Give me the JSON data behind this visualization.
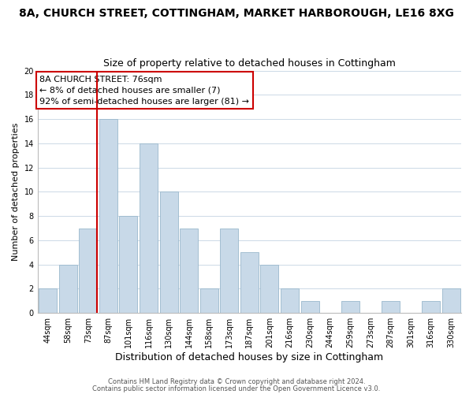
{
  "title": "8A, CHURCH STREET, COTTINGHAM, MARKET HARBOROUGH, LE16 8XG",
  "subtitle": "Size of property relative to detached houses in Cottingham",
  "xlabel": "Distribution of detached houses by size in Cottingham",
  "ylabel": "Number of detached properties",
  "bar_labels": [
    "44sqm",
    "58sqm",
    "73sqm",
    "87sqm",
    "101sqm",
    "116sqm",
    "130sqm",
    "144sqm",
    "158sqm",
    "173sqm",
    "187sqm",
    "201sqm",
    "216sqm",
    "230sqm",
    "244sqm",
    "259sqm",
    "273sqm",
    "287sqm",
    "301sqm",
    "316sqm",
    "330sqm"
  ],
  "bar_values": [
    2,
    4,
    7,
    16,
    8,
    14,
    10,
    7,
    2,
    7,
    5,
    4,
    2,
    1,
    0,
    1,
    0,
    1,
    0,
    1,
    2
  ],
  "bar_color": "#c8d9e8",
  "bar_edge_color": "#9ab8cc",
  "vline_color": "#cc0000",
  "annotation_title": "8A CHURCH STREET: 76sqm",
  "annotation_line1": "← 8% of detached houses are smaller (7)",
  "annotation_line2": "92% of semi-detached houses are larger (81) →",
  "annotation_box_facecolor": "#ffffff",
  "annotation_box_edgecolor": "#cc0000",
  "ylim": [
    0,
    20
  ],
  "yticks": [
    0,
    2,
    4,
    6,
    8,
    10,
    12,
    14,
    16,
    18,
    20
  ],
  "footer1": "Contains HM Land Registry data © Crown copyright and database right 2024.",
  "footer2": "Contains public sector information licensed under the Open Government Licence v3.0.",
  "title_fontsize": 10,
  "subtitle_fontsize": 9,
  "xlabel_fontsize": 9,
  "ylabel_fontsize": 8,
  "tick_fontsize": 7,
  "annotation_fontsize": 8,
  "footer_fontsize": 6,
  "background_color": "#ffffff",
  "grid_color": "#ccd9e6"
}
